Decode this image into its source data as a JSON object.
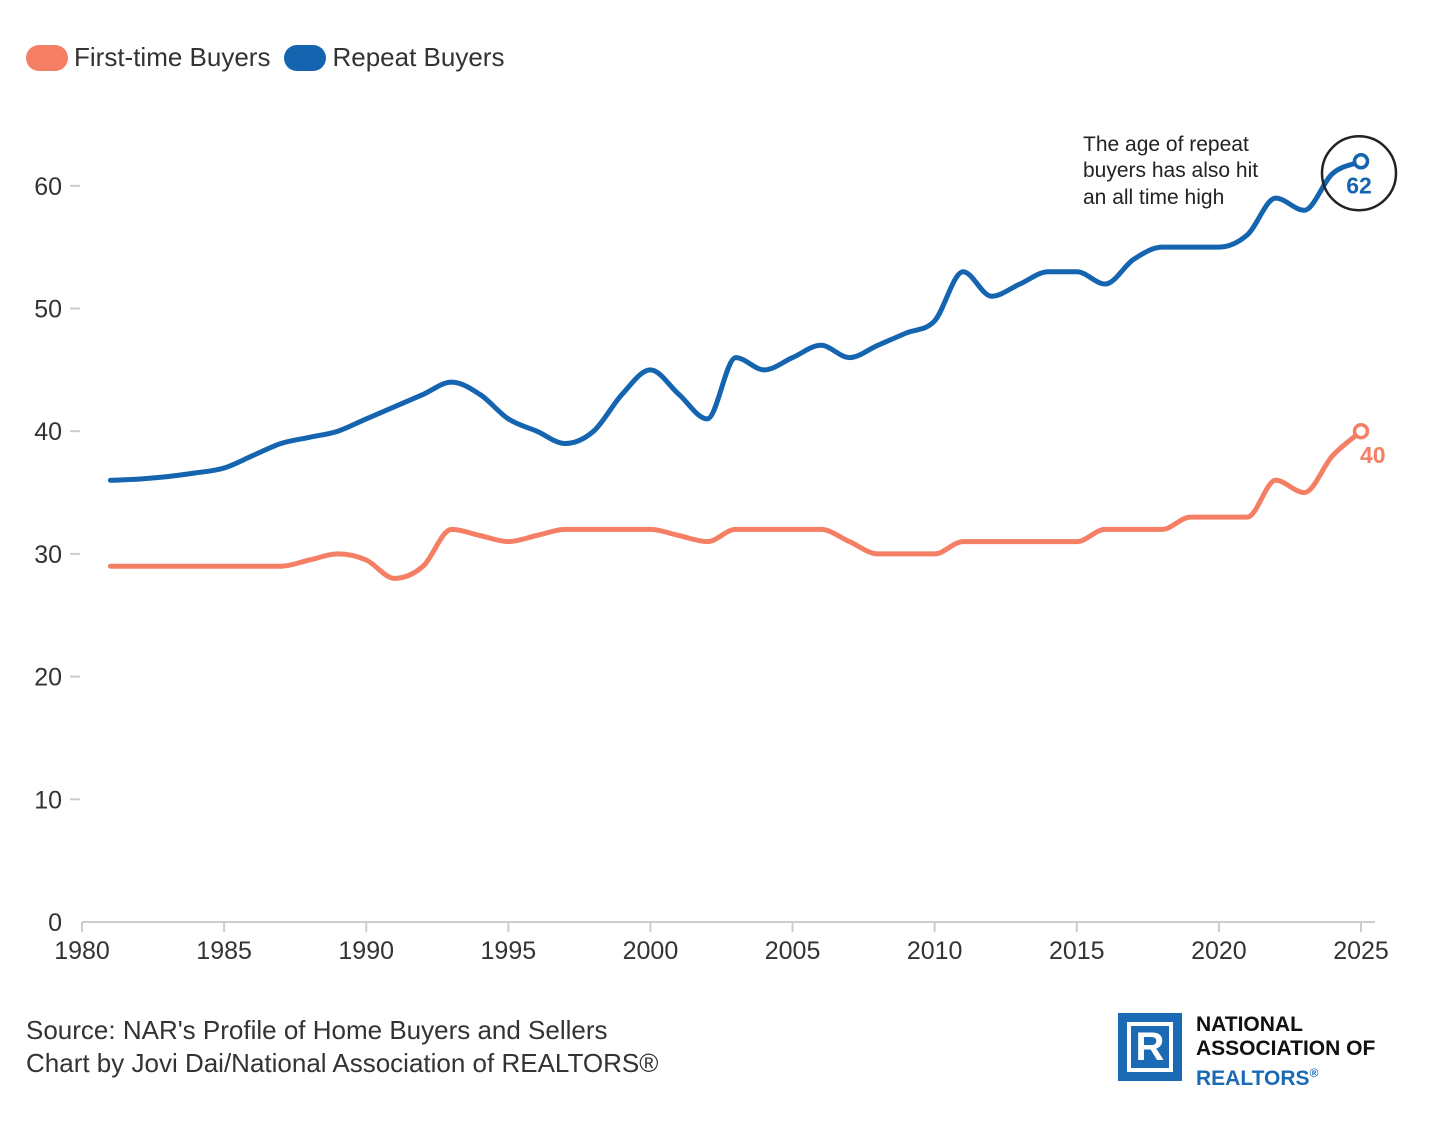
{
  "legend": {
    "first_time": "First-time Buyers",
    "repeat": "Repeat Buyers"
  },
  "colors": {
    "first_time": "#f47f64",
    "repeat": "#1464b0",
    "axis": "#cccccc",
    "annotation_circle": "#222222"
  },
  "annotation": {
    "lines": [
      "The age of repeat",
      "buyers has also hit",
      "an all time high"
    ]
  },
  "end_labels": {
    "repeat": "62",
    "first_time": "40"
  },
  "footer": {
    "source": "Source: NAR's Profile of Home Buyers and Sellers",
    "credit": "Chart by Jovi Dai/National Association of REALTORS®"
  },
  "logo": {
    "letter": "R",
    "line1": "NATIONAL",
    "line2": "ASSOCIATION OF",
    "line3": "REALTORS",
    "reg": "®"
  },
  "chart_data": {
    "type": "line",
    "title": "",
    "xlabel": "",
    "ylabel": "",
    "xlim": [
      1980,
      2025
    ],
    "ylim": [
      0,
      65
    ],
    "xticks": [
      1980,
      1985,
      1990,
      1995,
      2000,
      2005,
      2010,
      2015,
      2020,
      2025
    ],
    "yticks": [
      0,
      10,
      20,
      30,
      40,
      50,
      60
    ],
    "grid": false,
    "legend_position": "top-left",
    "series": [
      {
        "name": "First-time Buyers",
        "color": "#f47f64",
        "x": [
          1981,
          1982,
          1983,
          1984,
          1985,
          1986,
          1987,
          1988,
          1989,
          1990,
          1991,
          1992,
          1993,
          1994,
          1995,
          1996,
          1997,
          1998,
          1999,
          2000,
          2001,
          2002,
          2003,
          2004,
          2005,
          2006,
          2007,
          2008,
          2009,
          2010,
          2011,
          2012,
          2013,
          2014,
          2015,
          2016,
          2017,
          2018,
          2019,
          2020,
          2021,
          2022,
          2023,
          2024,
          2025
        ],
        "values": [
          29,
          29,
          29,
          29,
          29,
          29,
          29,
          29.5,
          30,
          29.5,
          28,
          29,
          32,
          31.5,
          31,
          31.5,
          32,
          32,
          32,
          32,
          31.5,
          31,
          32,
          32,
          32,
          32,
          31,
          30,
          30,
          30,
          31,
          31,
          31,
          31,
          31,
          32,
          32,
          32,
          33,
          33,
          33,
          36,
          35,
          38,
          40
        ]
      },
      {
        "name": "Repeat Buyers",
        "color": "#1464b0",
        "x": [
          1981,
          1982,
          1983,
          1984,
          1985,
          1986,
          1987,
          1988,
          1989,
          1990,
          1991,
          1992,
          1993,
          1994,
          1995,
          1996,
          1997,
          1998,
          1999,
          2000,
          2001,
          2002,
          2003,
          2004,
          2005,
          2006,
          2007,
          2008,
          2009,
          2010,
          2011,
          2012,
          2013,
          2014,
          2015,
          2016,
          2017,
          2018,
          2019,
          2020,
          2021,
          2022,
          2023,
          2024,
          2025
        ],
        "values": [
          36,
          36.1,
          36.3,
          36.6,
          37,
          38,
          39,
          39.5,
          40,
          41,
          42,
          43,
          44,
          43,
          41,
          40,
          39,
          40,
          43,
          45,
          43,
          41,
          46,
          45,
          46,
          47,
          46,
          47,
          48,
          49,
          53,
          51,
          52,
          53,
          53,
          52,
          54,
          55,
          55,
          55,
          56,
          59,
          58,
          61,
          62
        ]
      }
    ],
    "annotations": [
      {
        "text": "The age of repeat buyers has also hit an all time high",
        "series": "Repeat Buyers",
        "x": 2025,
        "y": 62
      }
    ]
  }
}
